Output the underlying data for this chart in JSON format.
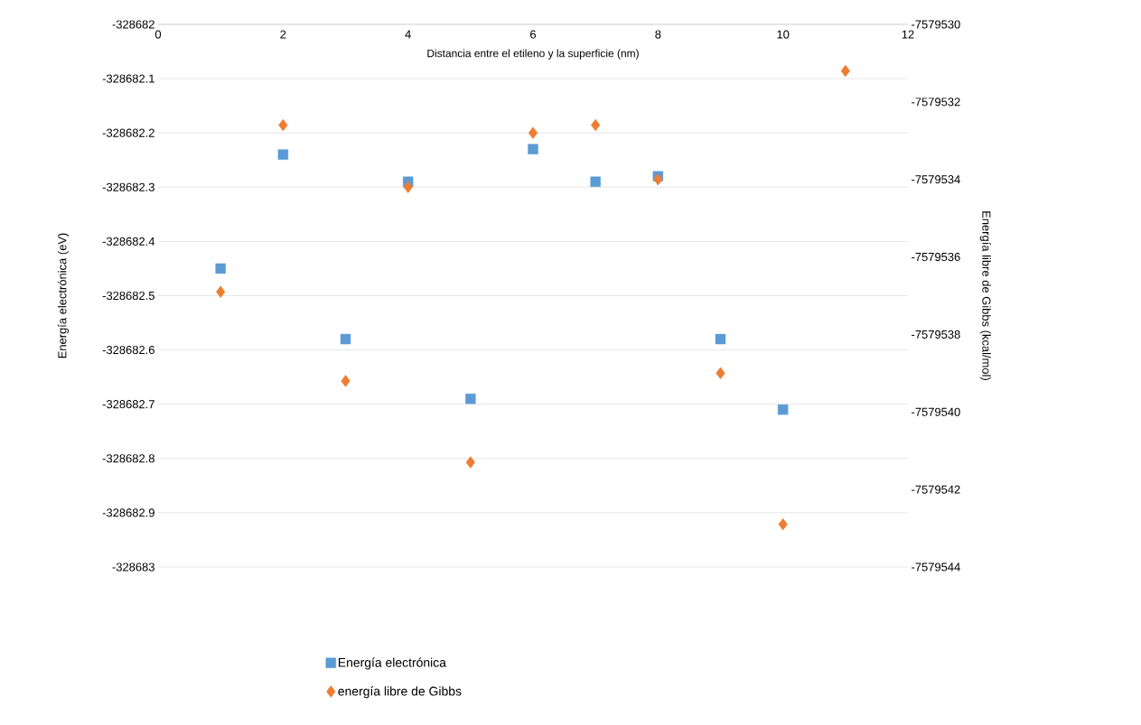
{
  "chart_data": {
    "type": "scatter",
    "xlabel": "Distancia entre el etileno y la superficie (nm)",
    "ylabel": "Energía electrónica (eV)",
    "y2label": "Energía libre de Gibbs (kcal/mol)",
    "xlim": [
      0,
      12
    ],
    "xticks": [
      0,
      2,
      4,
      6,
      8,
      10,
      12
    ],
    "ylim": [
      -328683,
      -328682
    ],
    "yticks": [
      -328683,
      -328682.9,
      -328682.8,
      -328682.7,
      -328682.6,
      -328682.5,
      -328682.4,
      -328682.3,
      -328682.2,
      -328682.1,
      -328682
    ],
    "y2lim": [
      -7579544,
      -7579530
    ],
    "y2ticks": [
      -7579544,
      -7579542,
      -7579540,
      -7579538,
      -7579536,
      -7579534,
      -7579532,
      -7579530
    ],
    "grid": "y",
    "legend": "bottom",
    "series": [
      {
        "name": "Energía electrónica",
        "color": "#5b9bd5",
        "marker": "square",
        "x": [
          1,
          2,
          3,
          4,
          5,
          6,
          7,
          8,
          9,
          10
        ],
        "values": [
          -328682.45,
          -328682.24,
          -328682.58,
          -328682.29,
          -328682.69,
          -328682.23,
          -328682.29,
          -328682.28,
          -328682.58,
          -328682.71
        ]
      },
      {
        "name": "energía libre de Gibbs",
        "color": "#ed7d31",
        "marker": "diamond",
        "axis": "y2",
        "x": [
          1,
          2,
          3,
          4,
          5,
          6,
          7,
          8,
          9,
          10,
          11
        ],
        "values": [
          -7579536.9,
          -7579532.6,
          -7579539.2,
          -7579534.2,
          -7579541.3,
          -7579532.8,
          -7579532.6,
          -7579534.0,
          -7579539.0,
          -7579542.9,
          -7579531.2
        ]
      }
    ]
  }
}
